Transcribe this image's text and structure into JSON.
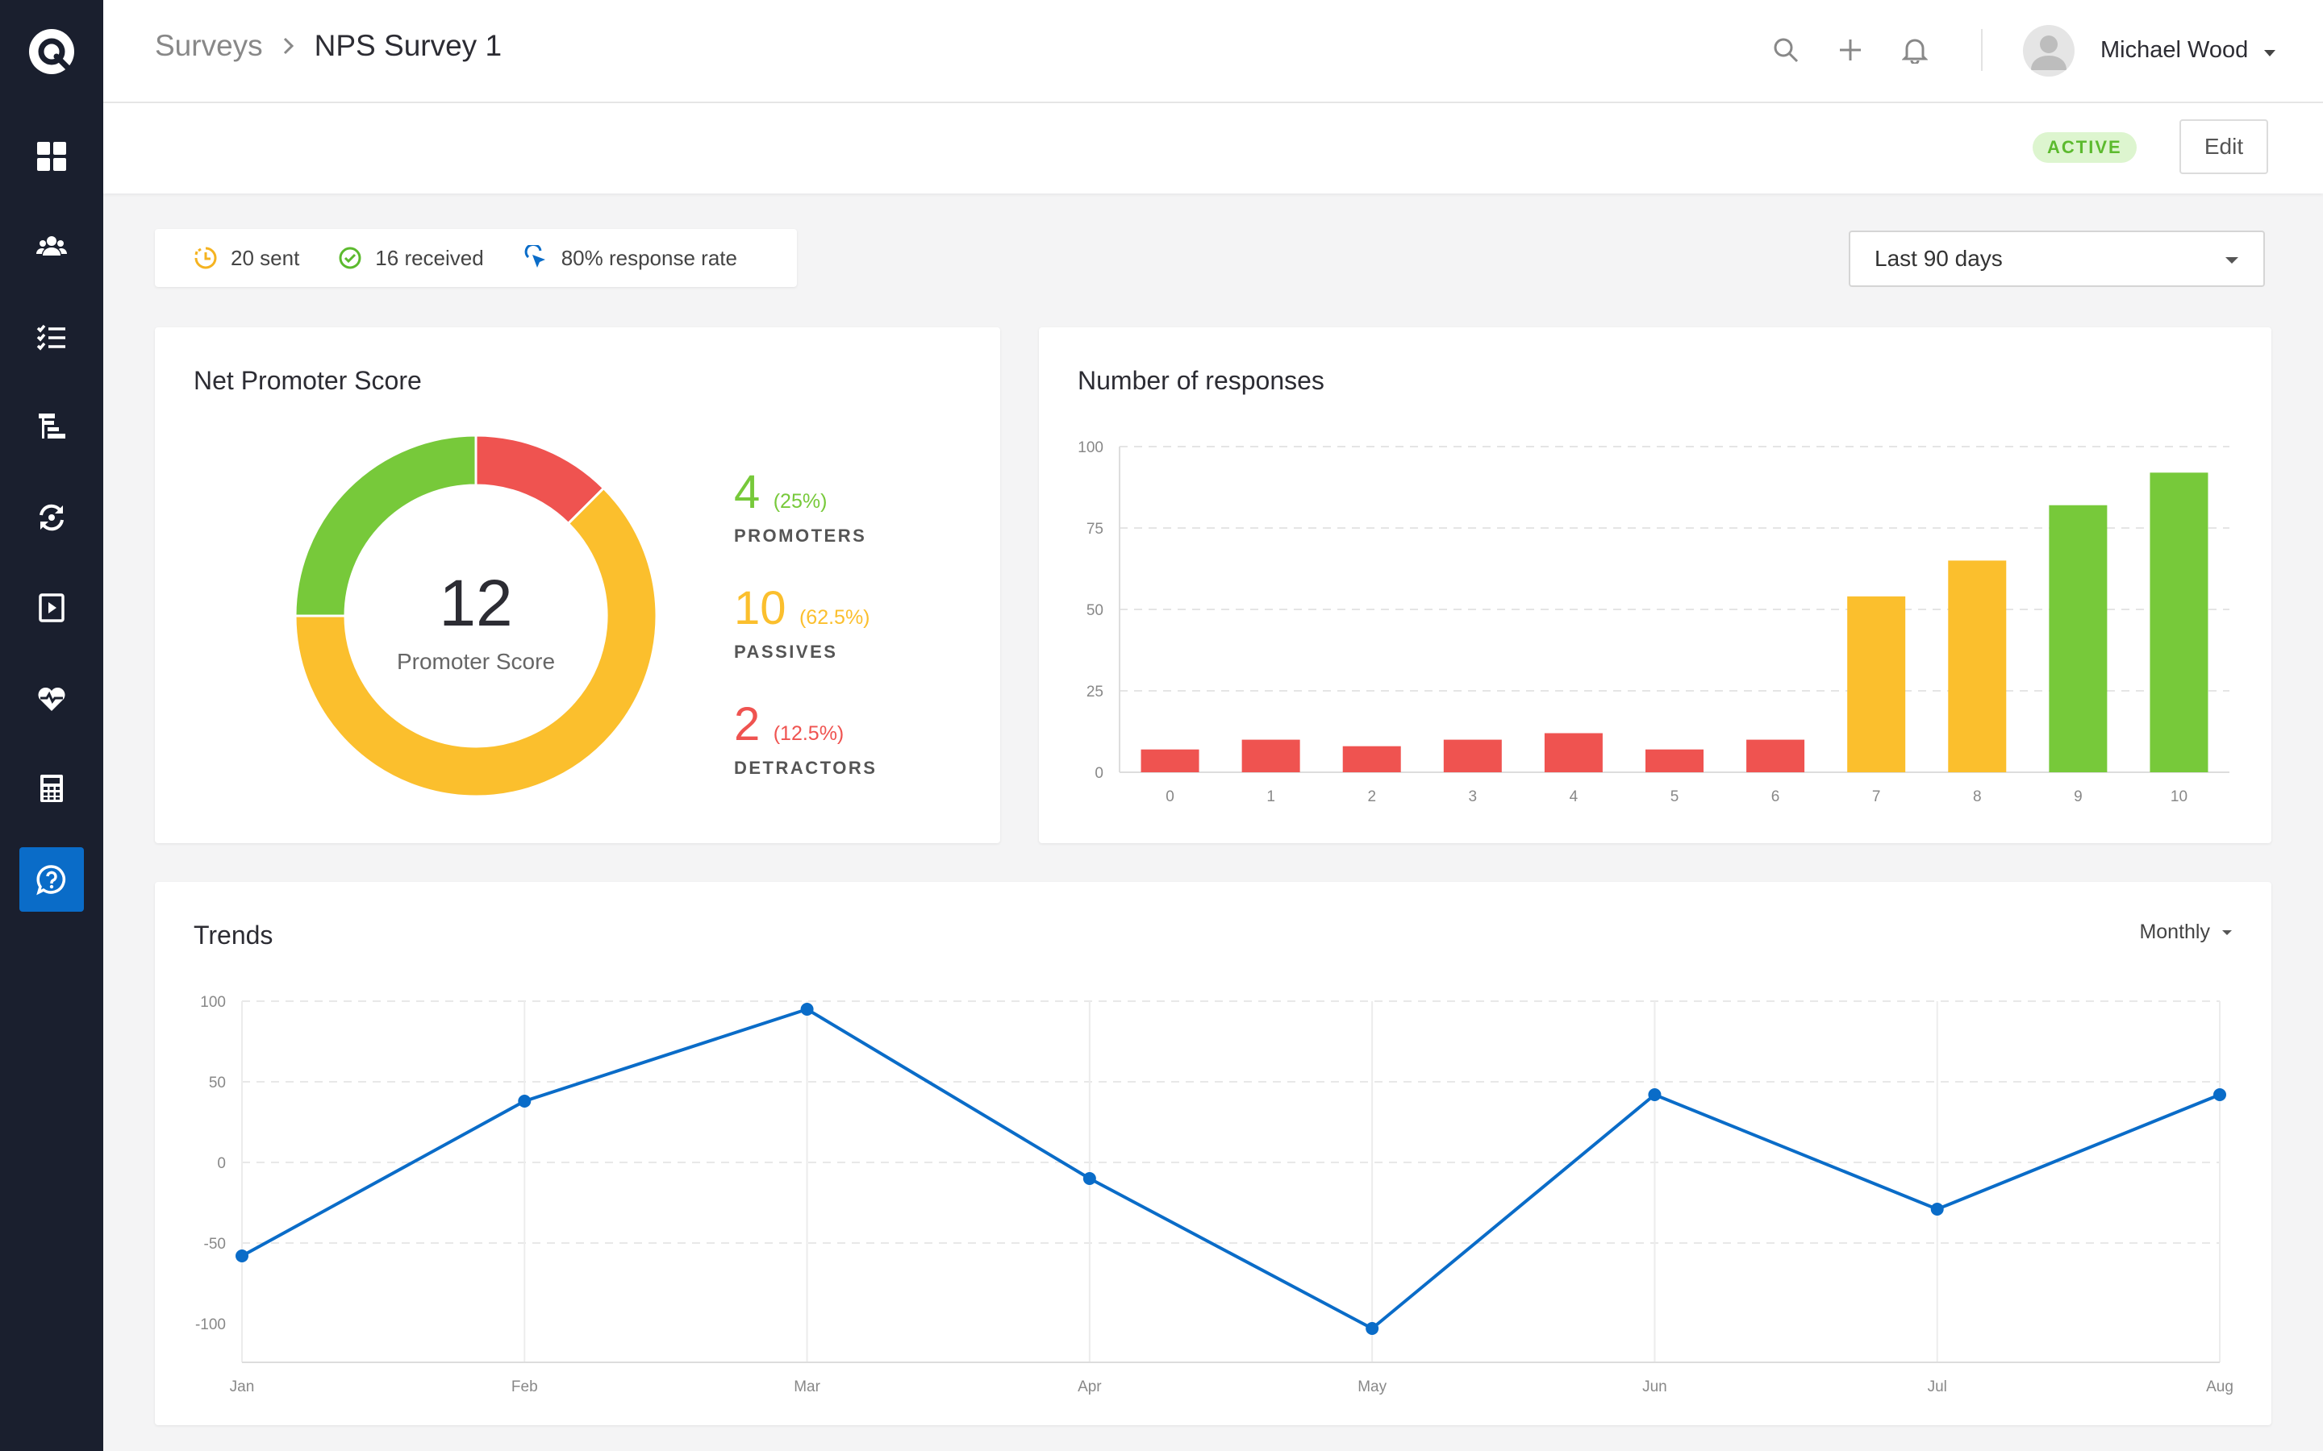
{
  "header": {
    "breadcrumb_parent": "Surveys",
    "breadcrumb_current": "NPS Survey 1",
    "user_name": "Michael Wood"
  },
  "subheader": {
    "status": "ACTIVE",
    "edit_label": "Edit"
  },
  "stats": {
    "sent": "20 sent",
    "received": "16 received",
    "response_rate": "80% response rate"
  },
  "date_filter": {
    "selected": "Last 90 days"
  },
  "nps": {
    "title": "Net Promoter Score",
    "score": "12",
    "score_label": "Promoter Score",
    "promoters": {
      "count": "4",
      "pct": "(25%)",
      "label": "PROMOTERS"
    },
    "passives": {
      "count": "10",
      "pct": "(62.5%)",
      "label": "PASSIVES"
    },
    "detractors": {
      "count": "2",
      "pct": "(12.5%)",
      "label": "DETRACTORS"
    }
  },
  "responses": {
    "title": "Number of responses"
  },
  "trends": {
    "title": "Trends",
    "period": "Monthly"
  },
  "colors": {
    "sidebar": "#1a1f2e",
    "accent": "#0a6cc8",
    "promoter": "#77c93a",
    "passive": "#fbbf2d",
    "detractor": "#ef5350",
    "line": "#0a6cc8"
  },
  "icons": {
    "sidebar": [
      "dashboard-icon",
      "users-icon",
      "checklist-icon",
      "hierarchy-icon",
      "sync-icon",
      "playlist-icon",
      "heartbeat-icon",
      "calculator-icon",
      "survey-icon"
    ],
    "header": [
      "search-icon",
      "plus-icon",
      "bell-icon",
      "avatar-icon"
    ]
  },
  "chart_data": [
    {
      "type": "pie",
      "categories": [
        "Promoters",
        "Passives",
        "Detractors"
      ],
      "values": [
        25,
        62.5,
        12.5
      ],
      "center_value": 12
    },
    {
      "type": "bar",
      "categories": [
        "0",
        "1",
        "2",
        "3",
        "4",
        "5",
        "6",
        "7",
        "8",
        "9",
        "10"
      ],
      "values": [
        7,
        10,
        8,
        10,
        12,
        7,
        10,
        54,
        65,
        82,
        92
      ],
      "ylim": [
        0,
        100
      ],
      "yticks": [
        0,
        25,
        50,
        75,
        100
      ],
      "grid": true
    },
    {
      "type": "line",
      "categories": [
        "Jan",
        "Feb",
        "Mar",
        "Apr",
        "May",
        "Jun",
        "Jul",
        "Aug"
      ],
      "values": [
        -58,
        38,
        95,
        -10,
        -103,
        42,
        -29,
        42
      ],
      "ylim": [
        -100,
        100
      ],
      "yticks": [
        100,
        50,
        0,
        -50,
        -100
      ],
      "grid": true
    }
  ]
}
